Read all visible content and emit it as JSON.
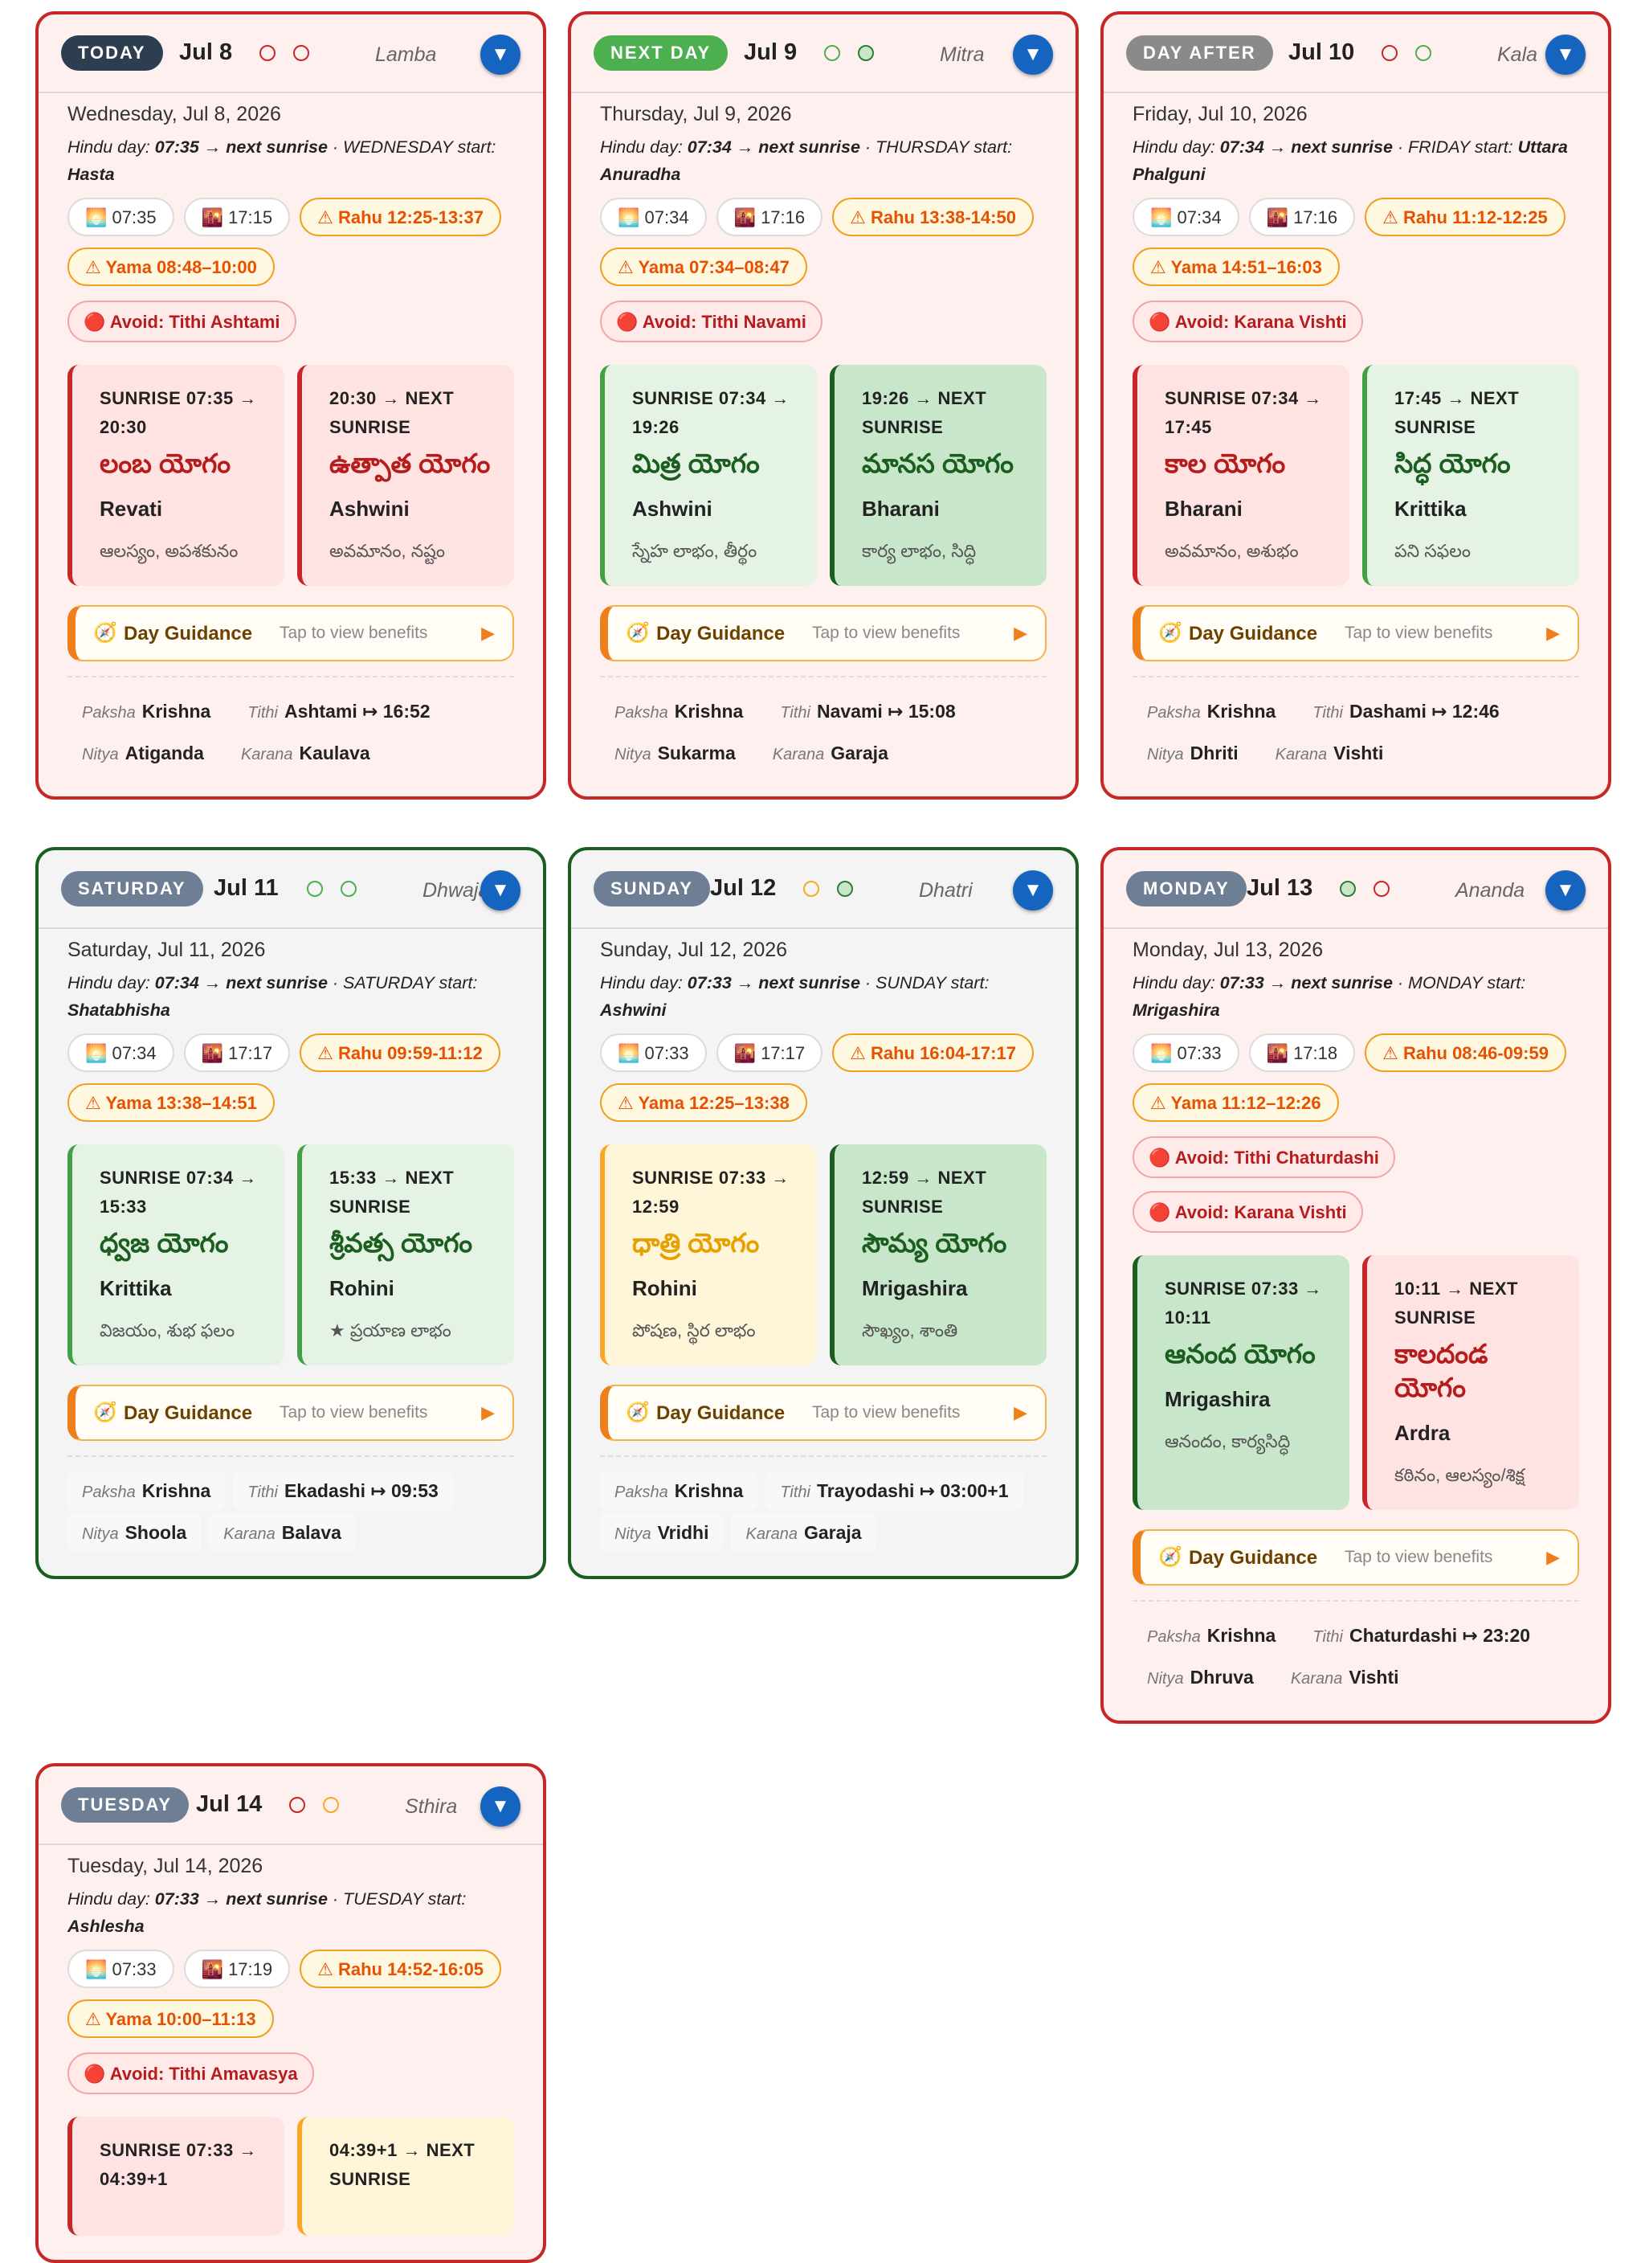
{
  "cards": [
    {
      "badge": "TODAY",
      "badge_kind": "today",
      "short_date": "Jul 8",
      "tone": "bad",
      "dots": [
        "red",
        "red"
      ],
      "yoga_label": "Lamba",
      "expand_icon": "▼",
      "full_date": "Wednesday, Jul 8, 2026",
      "hindu_day": {
        "prefix": "Hindu day:",
        "start": "07:35",
        "arrow": "→ next sunrise",
        "sep": "·",
        "weekday_start": "WEDNESDAY start:",
        "nakshatra": "Hasta"
      },
      "chips": [
        {
          "icon": "sunrise-icon",
          "text": "🌅 07:35",
          "warn": false
        },
        {
          "icon": "sunset-icon",
          "text": "🌇 17:15",
          "warn": false
        },
        {
          "icon": "warning-icon",
          "text": "⚠ Rahu 12:25-13:37",
          "warn": true
        },
        {
          "icon": "warning-icon",
          "text": "⚠ Yama 08:48–10:00",
          "warn": true
        }
      ],
      "avoids": [
        "🔴 Avoid: Tithi Ashtami"
      ],
      "yogas": [
        {
          "kind": "bad",
          "time": "SUNRISE 07:35 → 20:30",
          "name": "లంబ యోగం",
          "star": "Revati",
          "effect": "ఆలస్యం, అపశకునం"
        },
        {
          "kind": "bad",
          "time": "20:30 → NEXT SUNRISE",
          "name": "ఉత్పాత యోగం",
          "star": "Ashwini",
          "effect": "అవమానం, నష్టం"
        }
      ],
      "guidance": {
        "icon": "🧭",
        "title": "Day Guidance",
        "hint": "Tap to view benefits",
        "arrow": "▶"
      },
      "details": [
        [
          {
            "label": "Paksha",
            "value": "Krishna"
          },
          {
            "label": "Tithi",
            "value": "Ashtami ↦ 16:52"
          }
        ],
        [
          {
            "label": "Nitya",
            "value": "Atiganda"
          },
          {
            "label": "Karana",
            "value": "Kaulava"
          }
        ]
      ]
    },
    {
      "badge": "NEXT DAY",
      "badge_kind": "next",
      "short_date": "Jul 9",
      "tone": "bad",
      "dots": [
        "green",
        "green-filled"
      ],
      "yoga_label": "Mitra",
      "expand_icon": "▼",
      "full_date": "Thursday, Jul 9, 2026",
      "hindu_day": {
        "prefix": "Hindu day:",
        "start": "07:34",
        "arrow": "→ next sunrise",
        "sep": "·",
        "weekday_start": "THURSDAY start:",
        "nakshatra": "Anuradha"
      },
      "chips": [
        {
          "icon": "sunrise-icon",
          "text": "🌅 07:34",
          "warn": false
        },
        {
          "icon": "sunset-icon",
          "text": "🌇 17:16",
          "warn": false
        },
        {
          "icon": "warning-icon",
          "text": "⚠ Rahu 13:38-14:50",
          "warn": true
        },
        {
          "icon": "warning-icon",
          "text": "⚠ Yama 07:34–08:47",
          "warn": true
        }
      ],
      "avoids": [
        "🔴 Avoid: Tithi Navami"
      ],
      "yogas": [
        {
          "kind": "good",
          "time": "SUNRISE 07:34 → 19:26",
          "name": "మిత్ర యోగం",
          "star": "Ashwini",
          "effect": "స్నేహ లాభం, తీర్థం"
        },
        {
          "kind": "best",
          "time": "19:26 → NEXT SUNRISE",
          "name": "మానస యోగం",
          "star": "Bharani",
          "effect": "కార్య లాభం, సిద్ధి"
        }
      ],
      "guidance": {
        "icon": "🧭",
        "title": "Day Guidance",
        "hint": "Tap to view benefits",
        "arrow": "▶"
      },
      "details": [
        [
          {
            "label": "Paksha",
            "value": "Krishna"
          },
          {
            "label": "Tithi",
            "value": "Navami ↦ 15:08"
          }
        ],
        [
          {
            "label": "Nitya",
            "value": "Sukarma"
          },
          {
            "label": "Karana",
            "value": "Garaja"
          }
        ]
      ]
    },
    {
      "badge": "DAY AFTER",
      "badge_kind": "after",
      "short_date": "Jul 10",
      "tone": "bad",
      "dots": [
        "red",
        "green"
      ],
      "yoga_label": "Kala",
      "expand_icon": "▼",
      "full_date": "Friday, Jul 10, 2026",
      "hindu_day": {
        "prefix": "Hindu day:",
        "start": "07:34",
        "arrow": "→ next sunrise",
        "sep": "·",
        "weekday_start": "FRIDAY start:",
        "nakshatra": "Uttara Phalguni"
      },
      "chips": [
        {
          "icon": "sunrise-icon",
          "text": "🌅 07:34",
          "warn": false
        },
        {
          "icon": "sunset-icon",
          "text": "🌇 17:16",
          "warn": false
        },
        {
          "icon": "warning-icon",
          "text": "⚠ Rahu 11:12-12:25",
          "warn": true
        },
        {
          "icon": "warning-icon",
          "text": "⚠ Yama 14:51–16:03",
          "warn": true
        }
      ],
      "avoids": [
        "🔴 Avoid: Karana Vishti"
      ],
      "yogas": [
        {
          "kind": "bad",
          "time": "SUNRISE 07:34 → 17:45",
          "name": "కాల యోగం",
          "star": "Bharani",
          "effect": "అవమానం, అశుభం"
        },
        {
          "kind": "good",
          "time": "17:45 → NEXT SUNRISE",
          "name": "సిద్ధ యోగం",
          "star": "Krittika",
          "effect": "పని సఫలం"
        }
      ],
      "guidance": {
        "icon": "🧭",
        "title": "Day Guidance",
        "hint": "Tap to view benefits",
        "arrow": "▶"
      },
      "details": [
        [
          {
            "label": "Paksha",
            "value": "Krishna"
          },
          {
            "label": "Tithi",
            "value": "Dashami ↦ 12:46"
          }
        ],
        [
          {
            "label": "Nitya",
            "value": "Dhriti"
          },
          {
            "label": "Karana",
            "value": "Vishti"
          }
        ]
      ]
    },
    {
      "badge": "SATURDAY",
      "badge_kind": "weekday",
      "short_date": "Jul 11",
      "tone": "good",
      "dots": [
        "green",
        "green"
      ],
      "yoga_label": "Dhwaja",
      "expand_icon": "▼",
      "full_date": "Saturday, Jul 11, 2026",
      "hindu_day": {
        "prefix": "Hindu day:",
        "start": "07:34",
        "arrow": "→ next sunrise",
        "sep": "·",
        "weekday_start": "SATURDAY start:",
        "nakshatra": "Shatabhisha"
      },
      "chips": [
        {
          "icon": "sunrise-icon",
          "text": "🌅 07:34",
          "warn": false
        },
        {
          "icon": "sunset-icon",
          "text": "🌇 17:17",
          "warn": false
        },
        {
          "icon": "warning-icon",
          "text": "⚠ Rahu 09:59-11:12",
          "warn": true
        },
        {
          "icon": "warning-icon",
          "text": "⚠ Yama 13:38–14:51",
          "warn": true
        }
      ],
      "avoids": [],
      "yogas": [
        {
          "kind": "good",
          "time": "SUNRISE 07:34 → 15:33",
          "name": "ధ్వజ యోగం",
          "star": "Krittika",
          "effect": "విజయం, శుభ ఫలం"
        },
        {
          "kind": "good",
          "time": "15:33 → NEXT SUNRISE",
          "name": "శ్రీవత్స యోగం",
          "star": "Rohini",
          "effect": "★ ప్రయాణ లాభం"
        }
      ],
      "guidance": {
        "icon": "🧭",
        "title": "Day Guidance",
        "hint": "Tap to view benefits",
        "arrow": "▶"
      },
      "details": [
        [
          {
            "label": "Paksha",
            "value": "Krishna"
          },
          {
            "label": "Tithi",
            "value": "Ekadashi ↦ 09:53"
          }
        ],
        [
          {
            "label": "Nitya",
            "value": "Shoola"
          },
          {
            "label": "Karana",
            "value": "Balava"
          }
        ]
      ]
    },
    {
      "badge": "SUNDAY",
      "badge_kind": "weekday",
      "short_date": "Jul 12",
      "tone": "good",
      "dots": [
        "yellow",
        "green-filled"
      ],
      "yoga_label": "Dhatri",
      "expand_icon": "▼",
      "full_date": "Sunday, Jul 12, 2026",
      "hindu_day": {
        "prefix": "Hindu day:",
        "start": "07:33",
        "arrow": "→ next sunrise",
        "sep": "·",
        "weekday_start": "SUNDAY start:",
        "nakshatra": "Ashwini"
      },
      "chips": [
        {
          "icon": "sunrise-icon",
          "text": "🌅 07:33",
          "warn": false
        },
        {
          "icon": "sunset-icon",
          "text": "🌇 17:17",
          "warn": false
        },
        {
          "icon": "warning-icon",
          "text": "⚠ Rahu 16:04-17:17",
          "warn": true
        },
        {
          "icon": "warning-icon",
          "text": "⚠ Yama 12:25–13:38",
          "warn": true
        }
      ],
      "avoids": [],
      "yogas": [
        {
          "kind": "mid",
          "time": "SUNRISE 07:33 → 12:59",
          "name": "ధాత్రి యోగం",
          "star": "Rohini",
          "effect": "పోషణ, స్థిర లాభం"
        },
        {
          "kind": "best",
          "time": "12:59 → NEXT SUNRISE",
          "name": "సౌమ్య యోగం",
          "star": "Mrigashira",
          "effect": "సౌఖ్యం, శాంతి"
        }
      ],
      "guidance": {
        "icon": "🧭",
        "title": "Day Guidance",
        "hint": "Tap to view benefits",
        "arrow": "▶"
      },
      "details": [
        [
          {
            "label": "Paksha",
            "value": "Krishna"
          },
          {
            "label": "Tithi",
            "value": "Trayodashi ↦ 03:00+1"
          }
        ],
        [
          {
            "label": "Nitya",
            "value": "Vridhi"
          },
          {
            "label": "Karana",
            "value": "Garaja"
          }
        ]
      ]
    },
    {
      "badge": "MONDAY",
      "badge_kind": "weekday",
      "short_date": "Jul 13",
      "tone": "bad",
      "dots": [
        "green-filled",
        "red"
      ],
      "yoga_label": "Ananda",
      "expand_icon": "▼",
      "full_date": "Monday, Jul 13, 2026",
      "hindu_day": {
        "prefix": "Hindu day:",
        "start": "07:33",
        "arrow": "→ next sunrise",
        "sep": "·",
        "weekday_start": "MONDAY start:",
        "nakshatra": "Mrigashira"
      },
      "chips": [
        {
          "icon": "sunrise-icon",
          "text": "🌅 07:33",
          "warn": false
        },
        {
          "icon": "sunset-icon",
          "text": "🌇 17:18",
          "warn": false
        },
        {
          "icon": "warning-icon",
          "text": "⚠ Rahu 08:46-09:59",
          "warn": true
        },
        {
          "icon": "warning-icon",
          "text": "⚠ Yama 11:12–12:26",
          "warn": true
        }
      ],
      "avoids": [
        "🔴 Avoid: Tithi Chaturdashi",
        "🔴 Avoid: Karana Vishti"
      ],
      "yogas": [
        {
          "kind": "best",
          "time": "SUNRISE 07:33 → 10:11",
          "name": "ఆనంద యోగం",
          "star": "Mrigashira",
          "effect": "ఆనందం, కార్యసిద్ధి"
        },
        {
          "kind": "bad",
          "time": "10:11 → NEXT SUNRISE",
          "name": "కాలదండ యోగం",
          "star": "Ardra",
          "effect": "కఠినం, ఆలస్యం/శిక్ష"
        }
      ],
      "guidance": {
        "icon": "🧭",
        "title": "Day Guidance",
        "hint": "Tap to view benefits",
        "arrow": "▶"
      },
      "details": [
        [
          {
            "label": "Paksha",
            "value": "Krishna"
          },
          {
            "label": "Tithi",
            "value": "Chaturdashi ↦ 23:20"
          }
        ],
        [
          {
            "label": "Nitya",
            "value": "Dhruva"
          },
          {
            "label": "Karana",
            "value": "Vishti"
          }
        ]
      ]
    },
    {
      "badge": "TUESDAY",
      "badge_kind": "weekday",
      "short_date": "Jul 14",
      "tone": "bad",
      "dots": [
        "red",
        "yellow"
      ],
      "yoga_label": "Sthira",
      "expand_icon": "▼",
      "full_date": "Tuesday, Jul 14, 2026",
      "hindu_day": {
        "prefix": "Hindu day:",
        "start": "07:33",
        "arrow": "→ next sunrise",
        "sep": "·",
        "weekday_start": "TUESDAY start:",
        "nakshatra": "Ashlesha"
      },
      "chips": [
        {
          "icon": "sunrise-icon",
          "text": "🌅 07:33",
          "warn": false
        },
        {
          "icon": "sunset-icon",
          "text": "🌇 17:19",
          "warn": false
        },
        {
          "icon": "warning-icon",
          "text": "⚠ Rahu 14:52-16:05",
          "warn": true
        },
        {
          "icon": "warning-icon",
          "text": "⚠ Yama 10:00–11:13",
          "warn": true
        }
      ],
      "avoids": [
        "🔴 Avoid: Tithi Amavasya"
      ],
      "yogas": [
        {
          "kind": "bad",
          "time": "SUNRISE 07:33 → 04:39+1",
          "name": "",
          "star": "",
          "effect": ""
        },
        {
          "kind": "mid",
          "time": "04:39+1 → NEXT SUNRISE",
          "name": "",
          "star": "",
          "effect": ""
        }
      ],
      "guidance": null,
      "details": []
    }
  ]
}
